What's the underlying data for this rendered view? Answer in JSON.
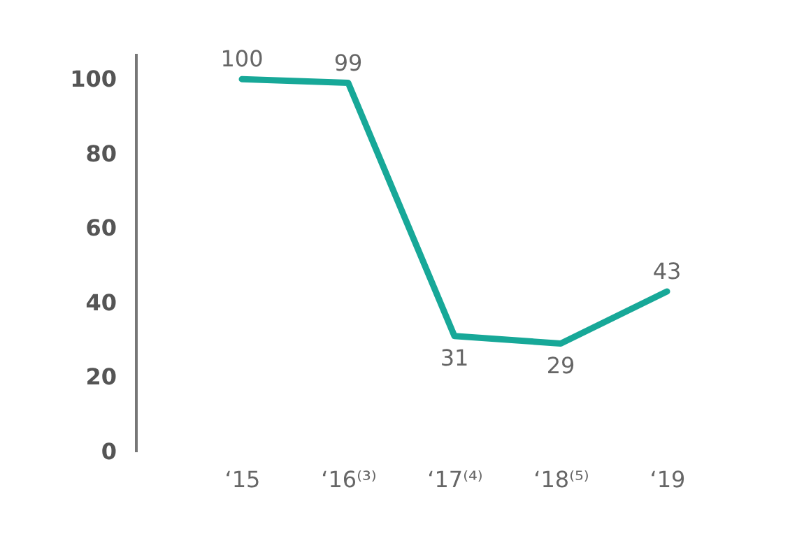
{
  "chart_data": {
    "type": "line",
    "categories": [
      "‘15",
      "‘16⁽³⁾",
      "‘17⁽⁴⁾",
      "‘18⁽⁵⁾",
      "‘19"
    ],
    "series": [
      {
        "color": "#17a898",
        "values": [
          100,
          99,
          31,
          29,
          43
        ]
      }
    ],
    "ylim": [
      0,
      107
    ],
    "yticks": [
      0,
      20,
      40,
      60,
      80,
      100
    ],
    "grid": false,
    "legend": false,
    "marker": "none",
    "line_style": "solid",
    "data_labels": true
  }
}
